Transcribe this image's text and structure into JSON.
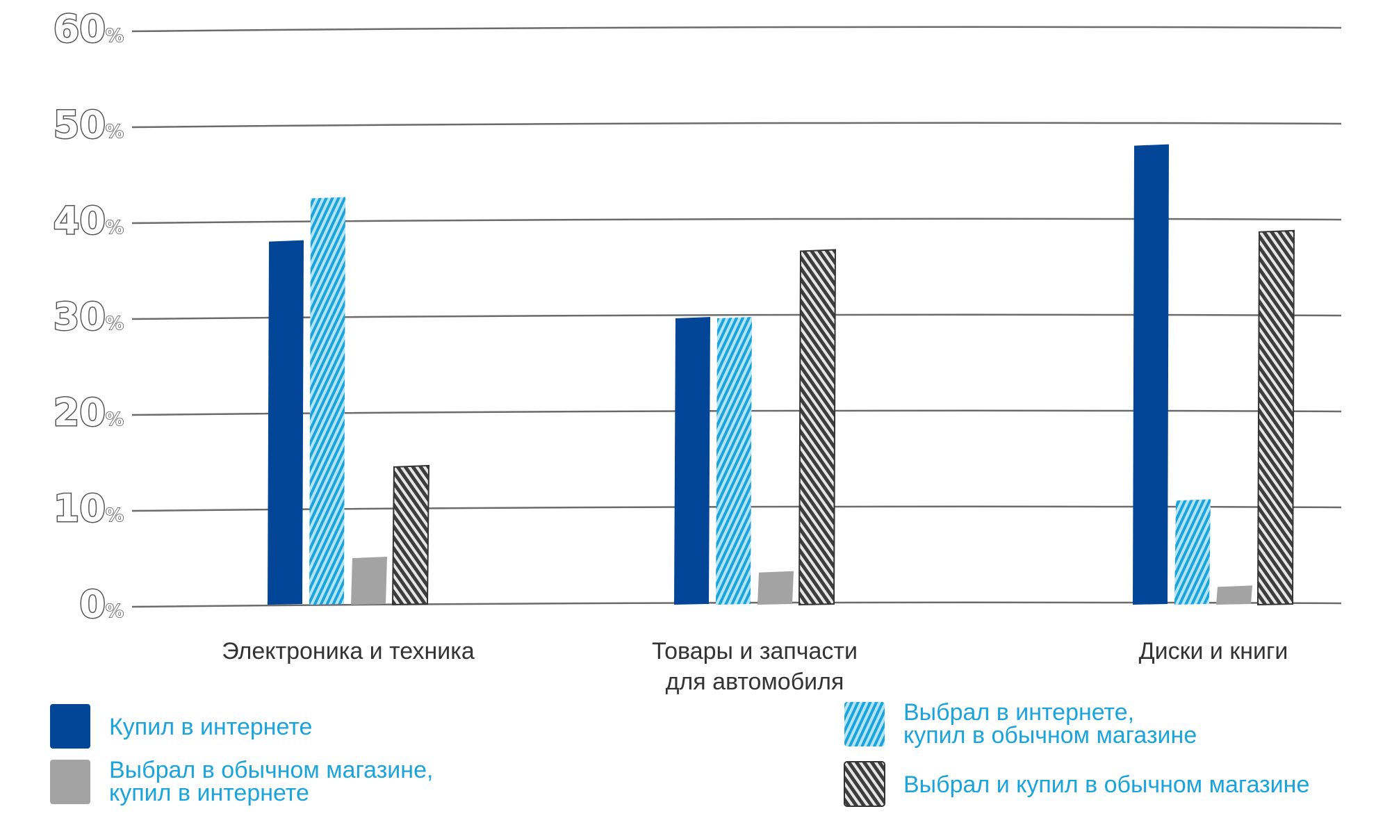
{
  "chart_data": {
    "type": "bar",
    "categories": [
      [
        "Электроника и техника"
      ],
      [
        "Товары и запчасти",
        "для автомобиля"
      ],
      [
        "Диски и книги"
      ]
    ],
    "series": [
      {
        "name": [
          "Купил в интернете"
        ],
        "values": [
          38,
          30,
          48
        ],
        "color": "#034597",
        "pattern": "solid"
      },
      {
        "name": [
          "Выбрал в интернете,",
          "купил в обычном магазине"
        ],
        "values": [
          42.5,
          30,
          11
        ],
        "color": "#1ba3dc",
        "pattern": "hatch-light"
      },
      {
        "name": [
          "Выбрал в обычном магазине,",
          "купил в интернете"
        ],
        "values": [
          5,
          3.5,
          2
        ],
        "color": "#a3a3a3",
        "pattern": "solid"
      },
      {
        "name": [
          "Выбрал и купил в обычном магазине"
        ],
        "values": [
          14.5,
          37,
          39
        ],
        "color": "#4a4a4a",
        "pattern": "hatch-dark"
      }
    ],
    "yticks": [
      0,
      10,
      20,
      30,
      40,
      50,
      60
    ],
    "ytick_unit": "%",
    "ylim": [
      0,
      60
    ],
    "grid": true,
    "legend_position": "bottom"
  }
}
